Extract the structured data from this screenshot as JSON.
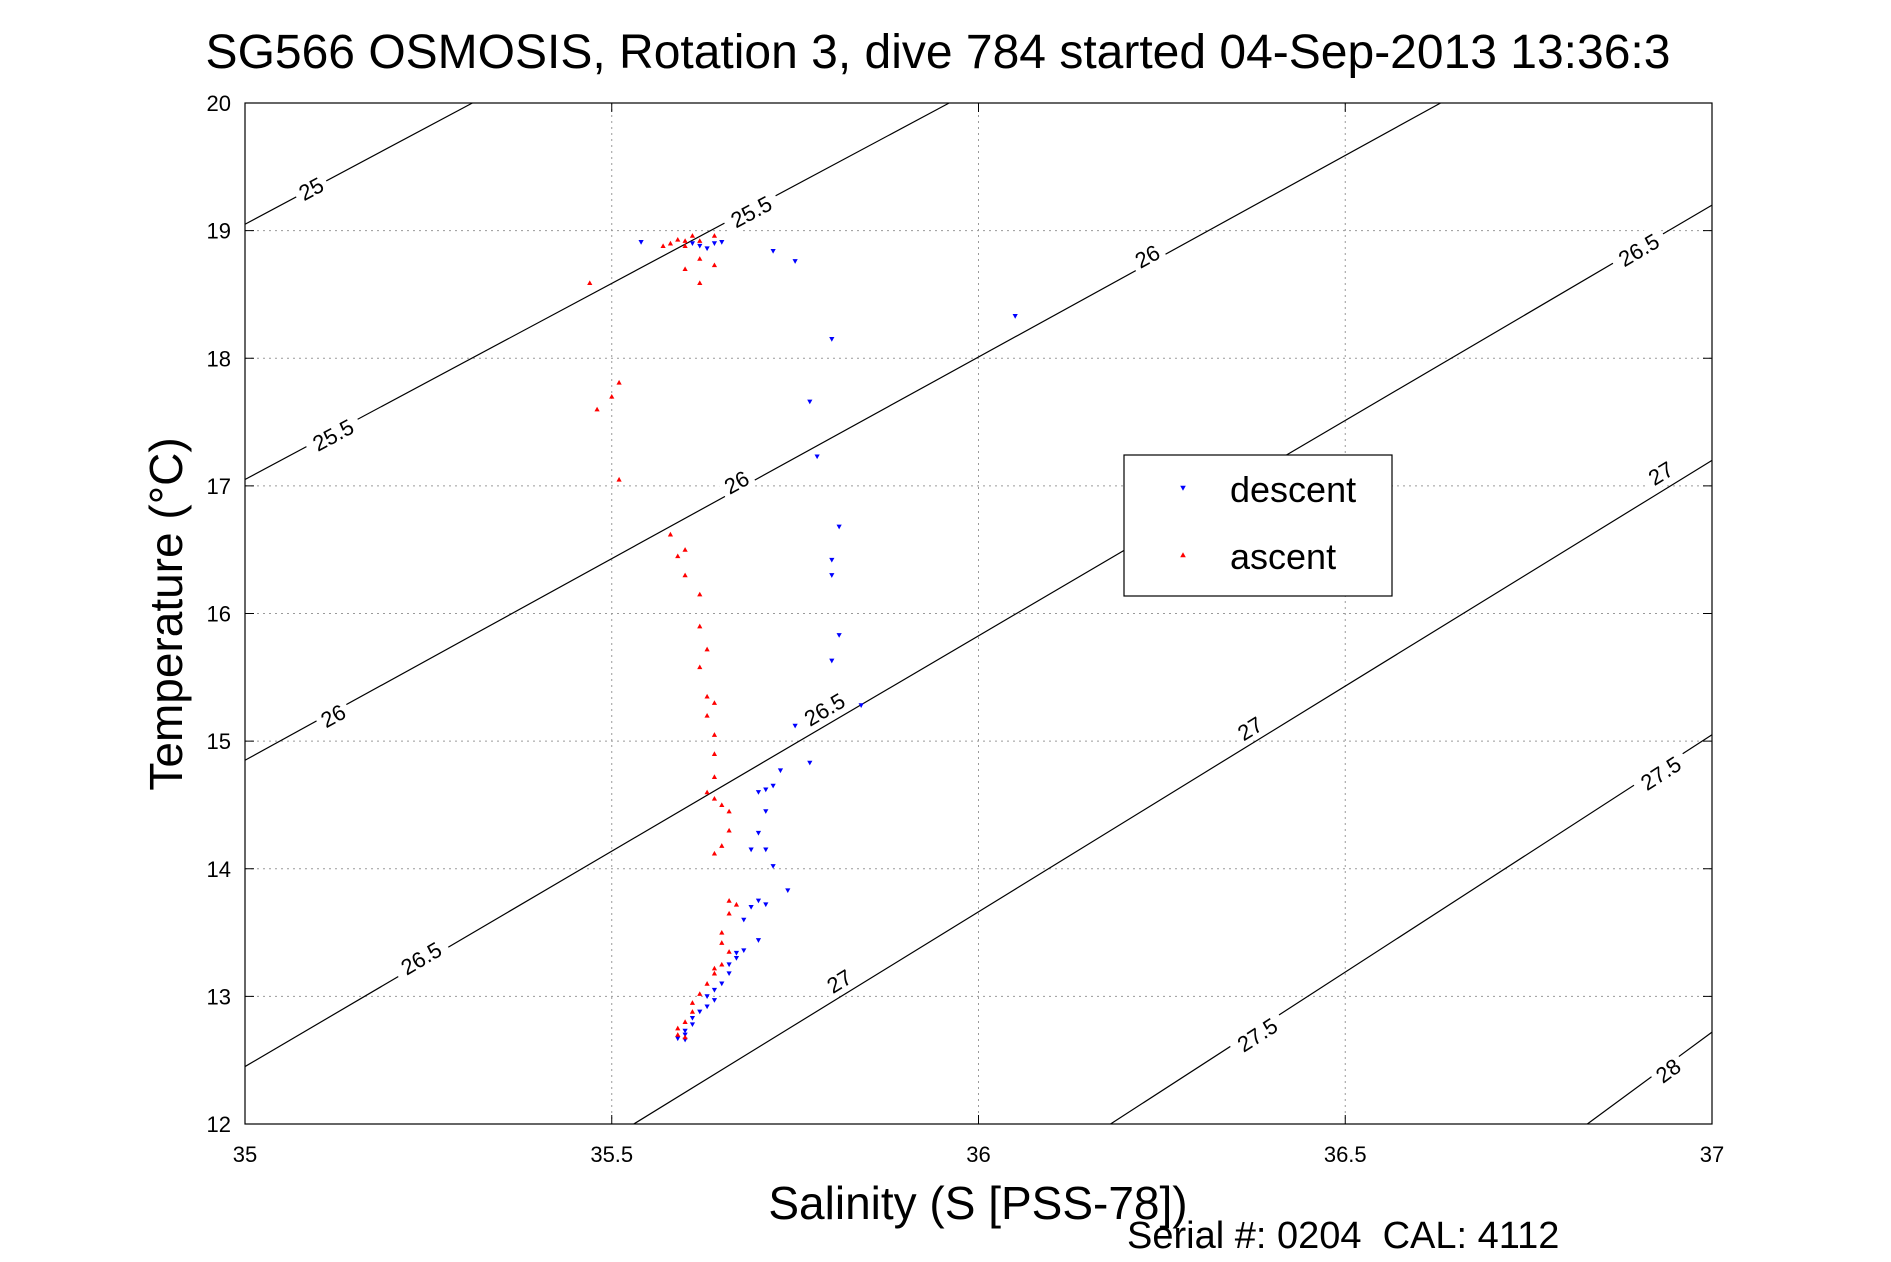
{
  "chart_data": {
    "type": "scatter",
    "title": "SG566 OSMOSIS, Rotation 3, dive 784 started 04-Sep-2013 13:36:3",
    "xlabel": "Salinity (S [PSS-78])",
    "ylabel": "Temperature (°C)",
    "xlim": [
      35,
      37
    ],
    "ylim": [
      12,
      20
    ],
    "x_ticks": [
      "35",
      "35.5",
      "36",
      "36.5",
      "37"
    ],
    "y_ticks": [
      "12",
      "13",
      "14",
      "15",
      "16",
      "17",
      "18",
      "19",
      "20"
    ],
    "grid": true,
    "footer": "Serial #: 0204  CAL: 4112",
    "legend": {
      "position": "right-center",
      "entries": [
        "descent",
        "ascent"
      ]
    },
    "isopycnals": [
      {
        "label": "25",
        "x1": 35.0,
        "y1": 19.05,
        "x2": 35.31,
        "y2": 20.0,
        "labels_at": [
          [
            35.09,
            19.33
          ]
        ]
      },
      {
        "label": "25.5",
        "x1": 35.0,
        "y1": 17.05,
        "x2": 35.96,
        "y2": 20.0,
        "labels_at": [
          [
            35.12,
            17.4
          ],
          [
            35.69,
            19.15
          ]
        ]
      },
      {
        "label": "26",
        "x1": 35.0,
        "y1": 14.85,
        "x2": 36.63,
        "y2": 20.0,
        "labels_at": [
          [
            35.12,
            15.2
          ],
          [
            35.67,
            17.03
          ],
          [
            36.23,
            18.8
          ]
        ]
      },
      {
        "label": "26.5",
        "x1": 35.0,
        "y1": 12.45,
        "x2": 37.0,
        "y2": 19.2,
        "labels_at": [
          [
            35.24,
            13.3
          ],
          [
            35.79,
            15.25
          ],
          [
            36.9,
            18.85
          ]
        ]
      },
      {
        "label": "27",
        "x1": 35.53,
        "y1": 12.0,
        "x2": 37.0,
        "y2": 17.2,
        "labels_at": [
          [
            35.81,
            13.12
          ],
          [
            36.37,
            15.1
          ],
          [
            36.93,
            17.1
          ]
        ]
      },
      {
        "label": "27.5",
        "x1": 36.18,
        "y1": 12.0,
        "x2": 37.0,
        "y2": 15.05,
        "labels_at": [
          [
            36.38,
            12.7
          ],
          [
            36.93,
            14.75
          ]
        ]
      },
      {
        "label": "28",
        "x1": 36.83,
        "y1": 12.0,
        "x2": 37.0,
        "y2": 12.72,
        "labels_at": [
          [
            36.94,
            12.42
          ]
        ]
      }
    ],
    "series": [
      {
        "name": "descent",
        "color": "#0000ff",
        "marker": "triangle-down",
        "points": [
          [
            35.54,
            18.91
          ],
          [
            35.61,
            18.9
          ],
          [
            35.62,
            18.88
          ],
          [
            35.63,
            18.86
          ],
          [
            35.64,
            18.9
          ],
          [
            35.65,
            18.91
          ],
          [
            35.72,
            18.84
          ],
          [
            35.75,
            18.76
          ],
          [
            36.05,
            18.33
          ],
          [
            35.8,
            18.15
          ],
          [
            35.77,
            17.66
          ],
          [
            35.78,
            17.23
          ],
          [
            35.81,
            16.68
          ],
          [
            35.8,
            16.42
          ],
          [
            35.8,
            16.3
          ],
          [
            35.81,
            15.83
          ],
          [
            35.8,
            15.63
          ],
          [
            35.84,
            15.28
          ],
          [
            35.75,
            15.12
          ],
          [
            35.77,
            14.83
          ],
          [
            35.73,
            14.77
          ],
          [
            35.72,
            14.65
          ],
          [
            35.71,
            14.62
          ],
          [
            35.7,
            14.6
          ],
          [
            35.71,
            14.45
          ],
          [
            35.7,
            14.28
          ],
          [
            35.71,
            14.15
          ],
          [
            35.69,
            14.15
          ],
          [
            35.72,
            14.02
          ],
          [
            35.74,
            13.83
          ],
          [
            35.7,
            13.75
          ],
          [
            35.71,
            13.72
          ],
          [
            35.69,
            13.7
          ],
          [
            35.68,
            13.6
          ],
          [
            35.7,
            13.44
          ],
          [
            35.68,
            13.36
          ],
          [
            35.67,
            13.34
          ],
          [
            35.67,
            13.3
          ],
          [
            35.66,
            13.25
          ],
          [
            35.66,
            13.18
          ],
          [
            35.65,
            13.1
          ],
          [
            35.64,
            13.05
          ],
          [
            35.63,
            13.0
          ],
          [
            35.64,
            12.97
          ],
          [
            35.63,
            12.92
          ],
          [
            35.62,
            12.88
          ],
          [
            35.61,
            12.83
          ],
          [
            35.61,
            12.78
          ],
          [
            35.6,
            12.73
          ],
          [
            35.6,
            12.7
          ],
          [
            35.59,
            12.67
          ],
          [
            35.6,
            12.66
          ]
        ]
      },
      {
        "name": "ascent",
        "color": "#ff0000",
        "marker": "triangle-up",
        "points": [
          [
            35.59,
            18.93
          ],
          [
            35.58,
            18.9
          ],
          [
            35.6,
            18.88
          ],
          [
            35.61,
            18.96
          ],
          [
            35.62,
            18.92
          ],
          [
            35.64,
            18.96
          ],
          [
            35.57,
            18.88
          ],
          [
            35.6,
            18.92
          ],
          [
            35.62,
            18.78
          ],
          [
            35.64,
            18.73
          ],
          [
            35.6,
            18.7
          ],
          [
            35.62,
            18.59
          ],
          [
            35.47,
            18.59
          ],
          [
            35.51,
            17.81
          ],
          [
            35.5,
            17.7
          ],
          [
            35.48,
            17.6
          ],
          [
            35.51,
            17.05
          ],
          [
            35.58,
            16.62
          ],
          [
            35.6,
            16.5
          ],
          [
            35.59,
            16.45
          ],
          [
            35.6,
            16.3
          ],
          [
            35.62,
            16.15
          ],
          [
            35.62,
            15.9
          ],
          [
            35.63,
            15.72
          ],
          [
            35.62,
            15.58
          ],
          [
            35.63,
            15.35
          ],
          [
            35.64,
            15.3
          ],
          [
            35.63,
            15.2
          ],
          [
            35.64,
            15.05
          ],
          [
            35.64,
            14.9
          ],
          [
            35.64,
            14.72
          ],
          [
            35.63,
            14.6
          ],
          [
            35.64,
            14.55
          ],
          [
            35.65,
            14.5
          ],
          [
            35.66,
            14.45
          ],
          [
            35.66,
            14.3
          ],
          [
            35.65,
            14.18
          ],
          [
            35.64,
            14.12
          ],
          [
            35.66,
            13.75
          ],
          [
            35.67,
            13.72
          ],
          [
            35.66,
            13.65
          ],
          [
            35.65,
            13.5
          ],
          [
            35.65,
            13.42
          ],
          [
            35.66,
            13.35
          ],
          [
            35.65,
            13.25
          ],
          [
            35.64,
            13.22
          ],
          [
            35.64,
            13.18
          ],
          [
            35.63,
            13.1
          ],
          [
            35.62,
            13.02
          ],
          [
            35.61,
            12.95
          ],
          [
            35.61,
            12.88
          ],
          [
            35.6,
            12.8
          ],
          [
            35.59,
            12.75
          ],
          [
            35.59,
            12.7
          ],
          [
            35.6,
            12.68
          ]
        ]
      }
    ]
  }
}
